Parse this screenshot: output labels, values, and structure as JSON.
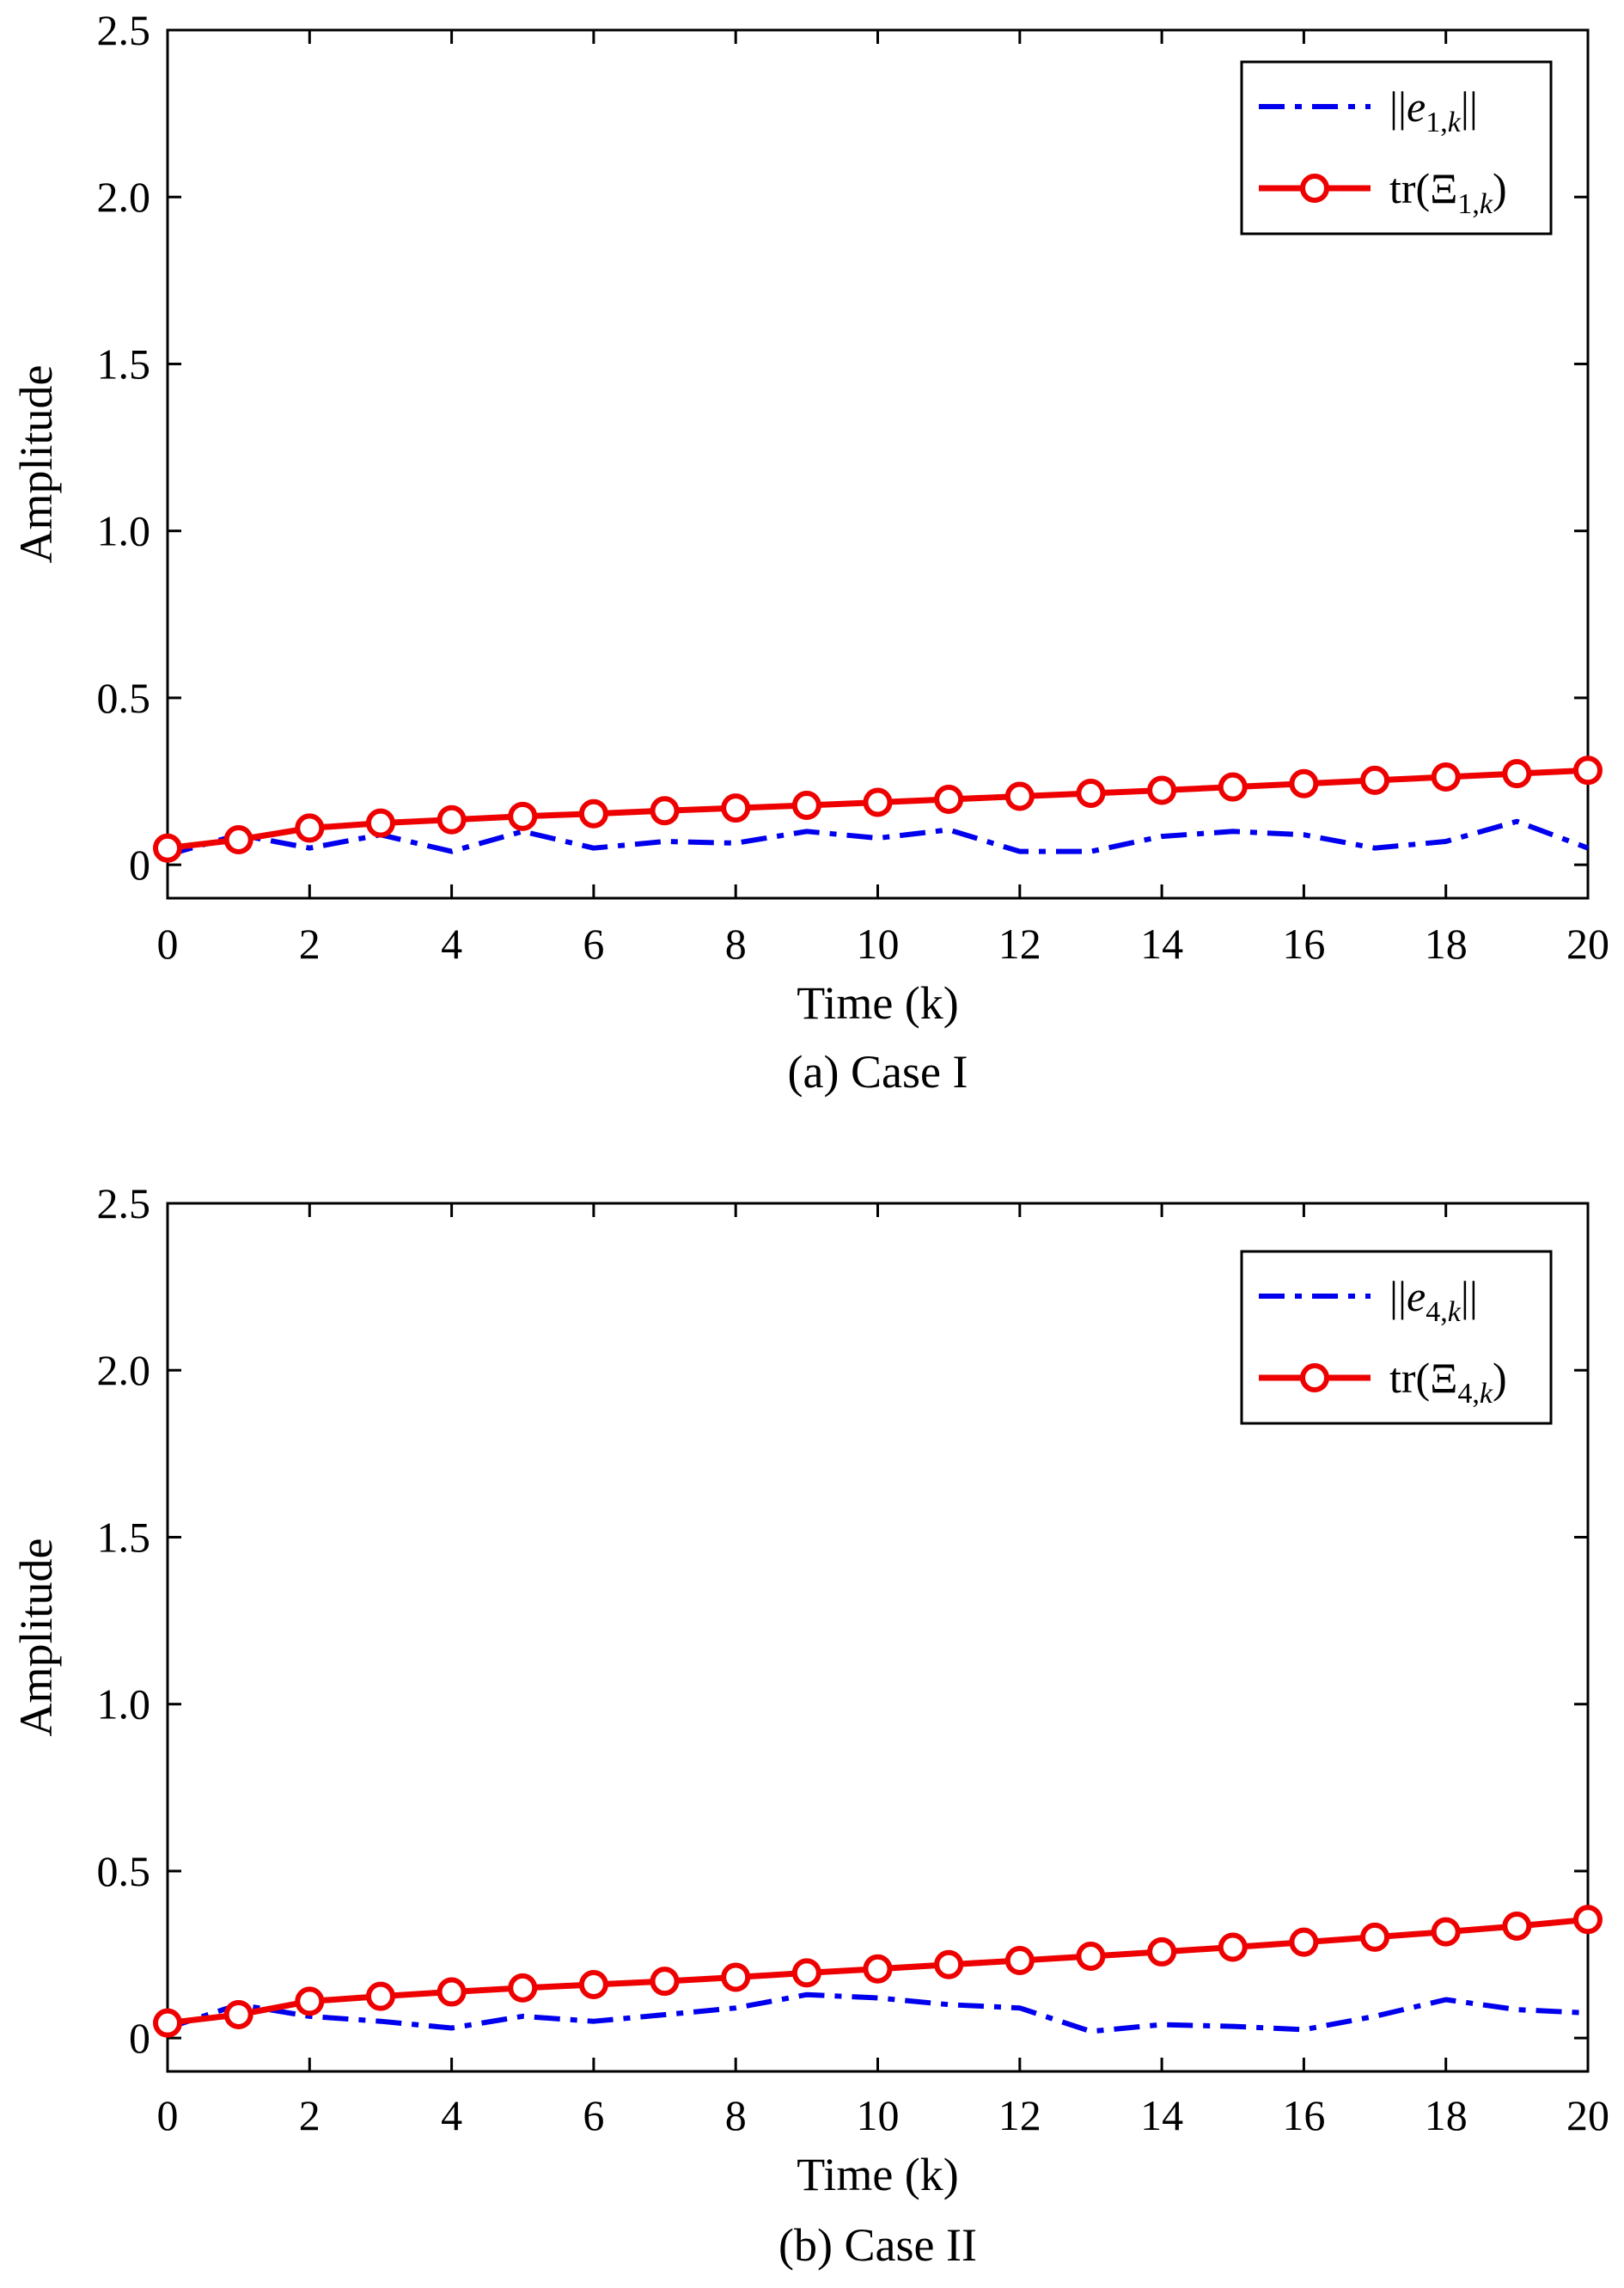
{
  "chart_data": [
    {
      "type": "line",
      "caption": "(a) Case I",
      "xlabel": "Time (k)",
      "ylabel": "Amplitude",
      "xlim": [
        0,
        20
      ],
      "ylim": [
        -0.1,
        2.5
      ],
      "xticks": [
        0,
        2,
        4,
        6,
        8,
        10,
        12,
        14,
        16,
        18,
        20
      ],
      "xtick_labels": [
        "0",
        "2",
        "4",
        "6",
        "8",
        "10",
        "12",
        "14",
        "16",
        "18",
        "20"
      ],
      "yticks": [
        0,
        0.5,
        1.0,
        1.5,
        2.0,
        2.5
      ],
      "ytick_labels": [
        "0",
        "0.5",
        "1.0",
        "1.5",
        "2.0",
        "2.5"
      ],
      "grid": false,
      "legend_position": "top-right",
      "x": [
        0,
        1,
        2,
        3,
        4,
        5,
        6,
        7,
        8,
        9,
        10,
        11,
        12,
        13,
        14,
        15,
        16,
        17,
        18,
        19,
        20
      ],
      "series": [
        {
          "name": "||e1,k||",
          "legend": {
            "pre": "||",
            "base": "e",
            "sub": "1,",
            "subItalic": "k",
            "post": "||",
            "baseItalic": true
          },
          "style": "dashdot",
          "color": "#0000ee",
          "marker": "none",
          "values": [
            0.03,
            0.09,
            0.05,
            0.09,
            0.04,
            0.1,
            0.05,
            0.07,
            0.065,
            0.1,
            0.08,
            0.105,
            0.04,
            0.04,
            0.085,
            0.1,
            0.09,
            0.05,
            0.07,
            0.13,
            0.05
          ]
        },
        {
          "name": "tr(Ξ1,k)",
          "legend": {
            "pre": "tr(",
            "base": "Ξ",
            "sub": "1,",
            "subItalic": "k",
            "post": ")",
            "baseItalic": false
          },
          "style": "solid",
          "color": "#ee0000",
          "marker": "circle",
          "values": [
            0.05,
            0.075,
            0.11,
            0.125,
            0.135,
            0.145,
            0.153,
            0.162,
            0.17,
            0.178,
            0.187,
            0.196,
            0.205,
            0.214,
            0.223,
            0.233,
            0.243,
            0.253,
            0.263,
            0.273,
            0.283
          ]
        }
      ]
    },
    {
      "type": "line",
      "caption": "(b) Case II",
      "xlabel": "Time (k)",
      "ylabel": "Amplitude",
      "xlim": [
        0,
        20
      ],
      "ylim": [
        -0.1,
        2.5
      ],
      "xticks": [
        0,
        2,
        4,
        6,
        8,
        10,
        12,
        14,
        16,
        18,
        20
      ],
      "xtick_labels": [
        "0",
        "2",
        "4",
        "6",
        "8",
        "10",
        "12",
        "14",
        "16",
        "18",
        "20"
      ],
      "yticks": [
        0,
        0.5,
        1.0,
        1.5,
        2.0,
        2.5
      ],
      "ytick_labels": [
        "0",
        "0.5",
        "1.0",
        "1.5",
        "2.0",
        "2.5"
      ],
      "grid": false,
      "legend_position": "top-right",
      "x": [
        0,
        1,
        2,
        3,
        4,
        5,
        6,
        7,
        8,
        9,
        10,
        11,
        12,
        13,
        14,
        15,
        16,
        17,
        18,
        19,
        20
      ],
      "series": [
        {
          "name": "||e4,k||",
          "legend": {
            "pre": "||",
            "base": "e",
            "sub": "4,",
            "subItalic": "k",
            "post": "||",
            "baseItalic": true
          },
          "style": "dashdot",
          "color": "#0000ee",
          "marker": "none",
          "values": [
            0.03,
            0.1,
            0.065,
            0.05,
            0.03,
            0.065,
            0.05,
            0.07,
            0.09,
            0.13,
            0.12,
            0.1,
            0.09,
            0.02,
            0.04,
            0.035,
            0.025,
            0.065,
            0.115,
            0.085,
            0.075
          ]
        },
        {
          "name": "tr(Ξ4,k)",
          "legend": {
            "pre": "tr(",
            "base": "Ξ",
            "sub": "4,",
            "subItalic": "k",
            "post": ")",
            "baseItalic": false
          },
          "style": "solid",
          "color": "#ee0000",
          "marker": "circle",
          "values": [
            0.045,
            0.07,
            0.11,
            0.125,
            0.138,
            0.15,
            0.16,
            0.17,
            0.182,
            0.195,
            0.207,
            0.22,
            0.232,
            0.245,
            0.258,
            0.272,
            0.287,
            0.302,
            0.318,
            0.335,
            0.355
          ]
        }
      ]
    }
  ]
}
